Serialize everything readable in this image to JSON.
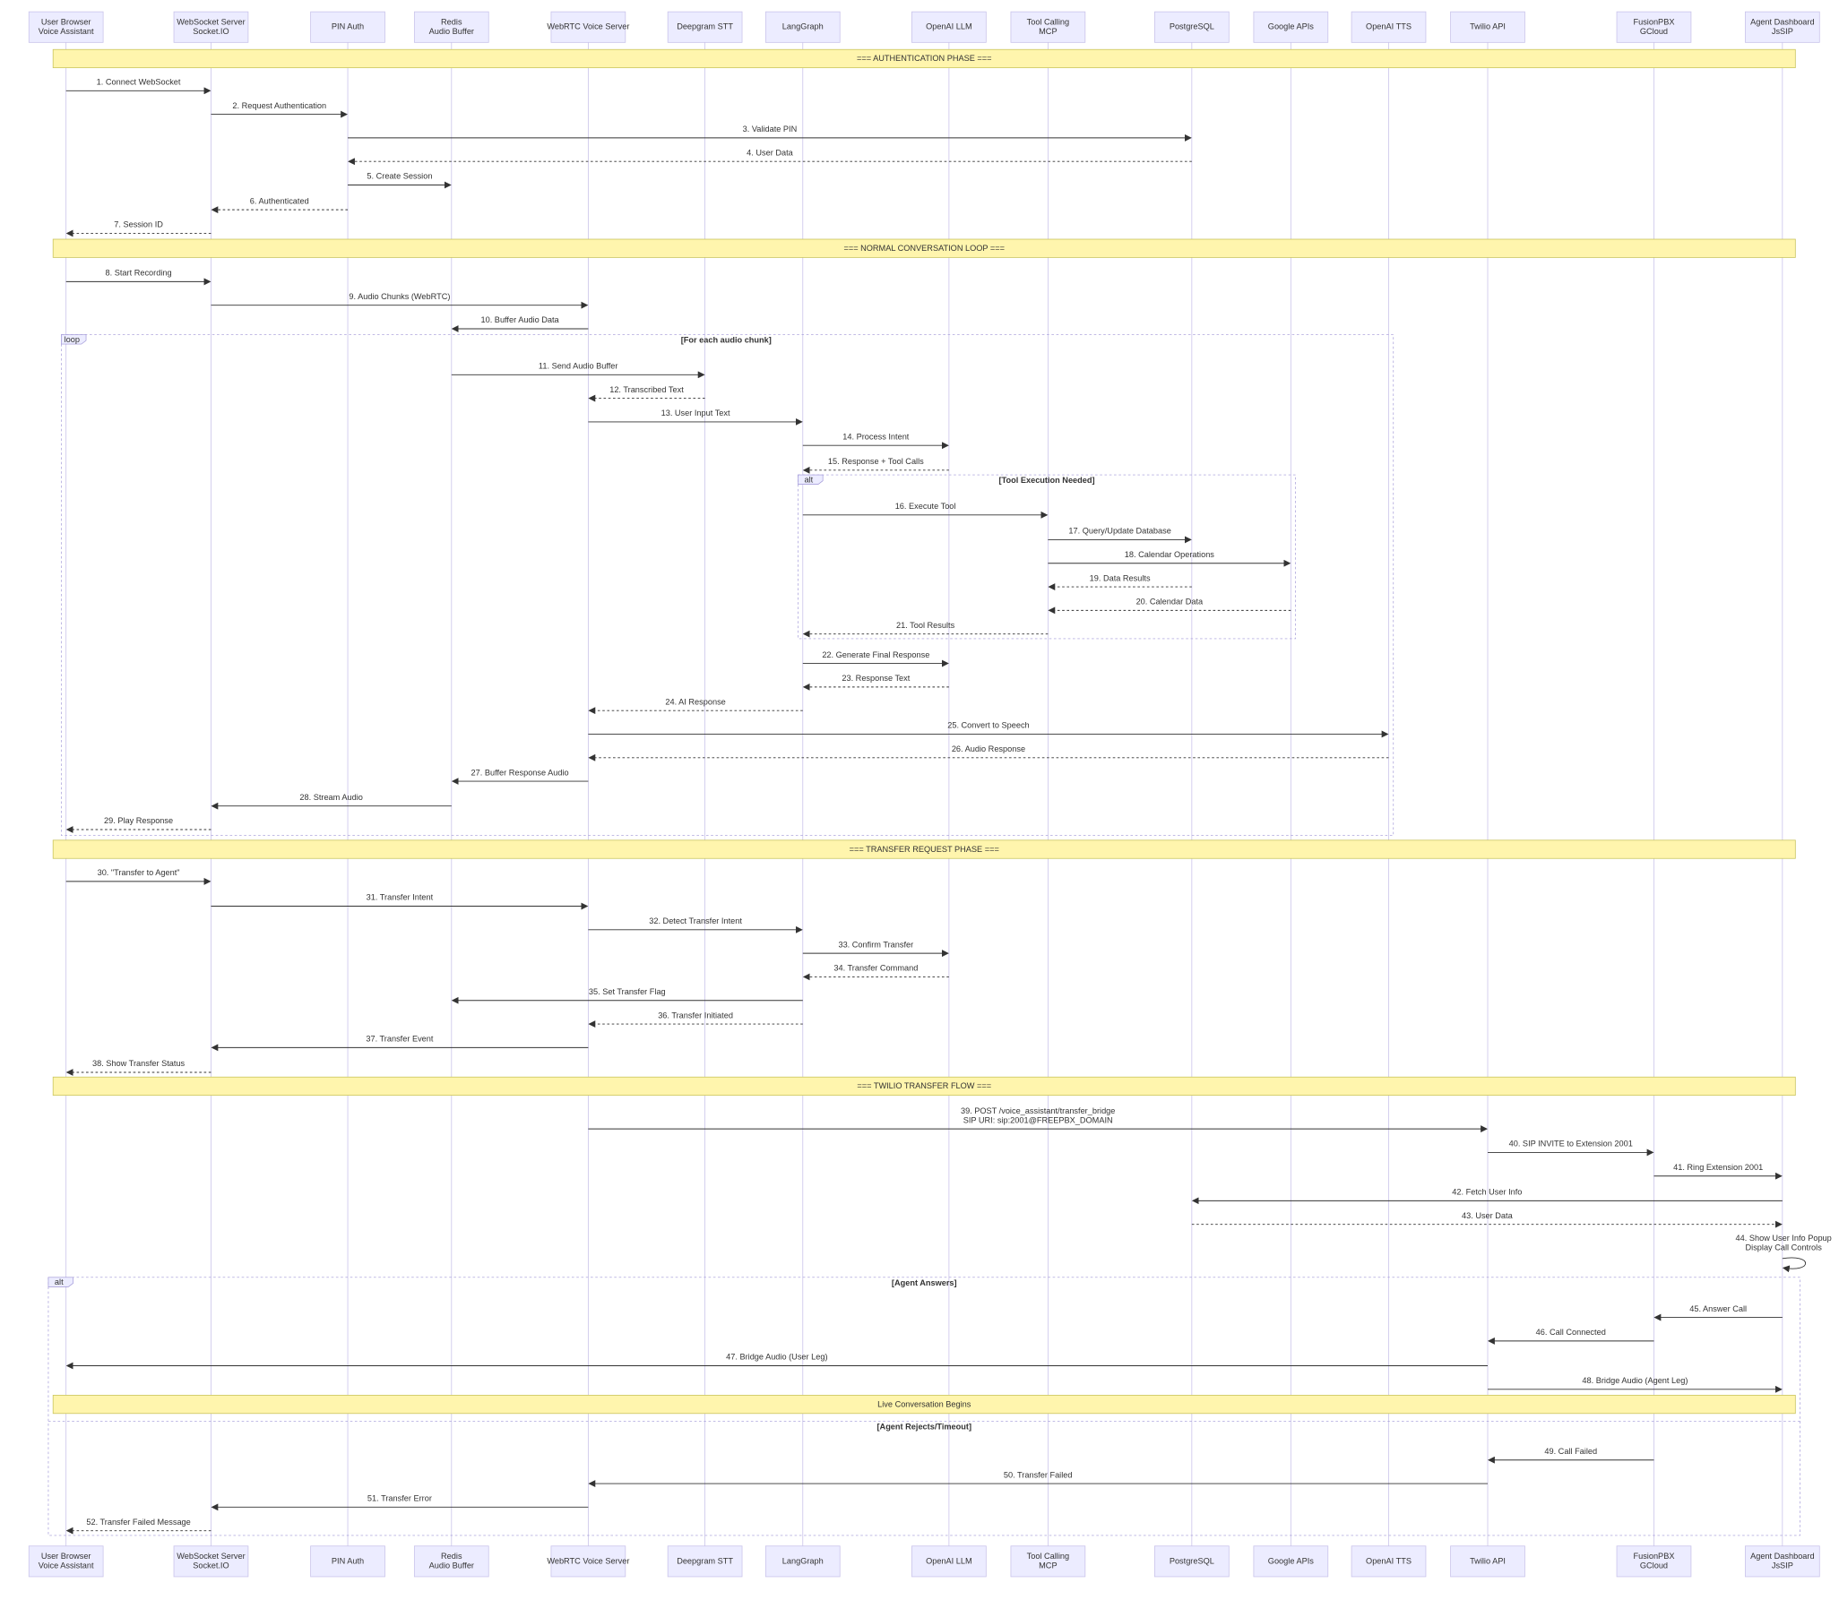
{
  "participants": [
    {
      "lines": [
        "User Browser",
        "Voice Assistant"
      ]
    },
    {
      "lines": [
        "WebSocket Server",
        "Socket.IO"
      ]
    },
    {
      "lines": [
        "PIN Auth"
      ]
    },
    {
      "lines": [
        "Redis",
        "Audio Buffer"
      ]
    },
    {
      "lines": [
        "WebRTC Voice Server"
      ]
    },
    {
      "lines": [
        "Deepgram STT"
      ]
    },
    {
      "lines": [
        "LangGraph"
      ]
    },
    {
      "lines": [
        "OpenAI LLM"
      ]
    },
    {
      "lines": [
        "Tool Calling",
        "MCP"
      ]
    },
    {
      "lines": [
        "PostgreSQL"
      ]
    },
    {
      "lines": [
        "Google APIs"
      ]
    },
    {
      "lines": [
        "OpenAI TTS"
      ]
    },
    {
      "lines": [
        "Twilio API"
      ]
    },
    {
      "lines": [
        "FusionPBX",
        "GCloud"
      ]
    },
    {
      "lines": [
        "Agent Dashboard",
        "JsSIP"
      ]
    }
  ],
  "notes": [
    {
      "text": "=== AUTHENTICATION PHASE ==="
    },
    {
      "text": "=== NORMAL CONVERSATION LOOP ==="
    },
    {
      "text": "=== TRANSFER REQUEST PHASE ==="
    },
    {
      "text": "=== TWILIO TRANSFER FLOW ==="
    },
    {
      "text": "Live Conversation Begins"
    }
  ],
  "blocks": [
    {
      "kind": "loop",
      "condition": "[For each audio chunk]"
    },
    {
      "kind": "alt",
      "condition": "[Tool Execution Needed]"
    },
    {
      "kind": "alt",
      "condition": "[Agent Answers]",
      "else_condition": "[Agent Rejects/Timeout]"
    }
  ],
  "messages": [
    {
      "lines": [
        "1. Connect WebSocket"
      ],
      "from": 0,
      "to": 1,
      "dashed": false
    },
    {
      "lines": [
        "2. Request Authentication"
      ],
      "from": 1,
      "to": 2,
      "dashed": false
    },
    {
      "lines": [
        "3. Validate PIN"
      ],
      "from": 2,
      "to": 9,
      "dashed": false
    },
    {
      "lines": [
        "4. User Data"
      ],
      "from": 9,
      "to": 2,
      "dashed": true
    },
    {
      "lines": [
        "5. Create Session"
      ],
      "from": 2,
      "to": 3,
      "dashed": false
    },
    {
      "lines": [
        "6. Authenticated"
      ],
      "from": 2,
      "to": 1,
      "dashed": true
    },
    {
      "lines": [
        "7. Session ID"
      ],
      "from": 1,
      "to": 0,
      "dashed": true
    },
    {
      "lines": [
        "8. Start Recording"
      ],
      "from": 0,
      "to": 1,
      "dashed": false
    },
    {
      "lines": [
        "9. Audio Chunks (WebRTC)"
      ],
      "from": 1,
      "to": 4,
      "dashed": false
    },
    {
      "lines": [
        "10. Buffer Audio Data"
      ],
      "from": 4,
      "to": 3,
      "dashed": false
    },
    {
      "lines": [
        "11. Send Audio Buffer"
      ],
      "from": 3,
      "to": 5,
      "dashed": false
    },
    {
      "lines": [
        "12. Transcribed Text"
      ],
      "from": 5,
      "to": 4,
      "dashed": true
    },
    {
      "lines": [
        "13. User Input Text"
      ],
      "from": 4,
      "to": 6,
      "dashed": false
    },
    {
      "lines": [
        "14. Process Intent"
      ],
      "from": 6,
      "to": 7,
      "dashed": false
    },
    {
      "lines": [
        "15. Response + Tool Calls"
      ],
      "from": 7,
      "to": 6,
      "dashed": true
    },
    {
      "lines": [
        "16. Execute Tool"
      ],
      "from": 6,
      "to": 8,
      "dashed": false
    },
    {
      "lines": [
        "17. Query/Update Database"
      ],
      "from": 8,
      "to": 9,
      "dashed": false
    },
    {
      "lines": [
        "18. Calendar Operations"
      ],
      "from": 8,
      "to": 10,
      "dashed": false
    },
    {
      "lines": [
        "19. Data Results"
      ],
      "from": 9,
      "to": 8,
      "dashed": true
    },
    {
      "lines": [
        "20. Calendar Data"
      ],
      "from": 10,
      "to": 8,
      "dashed": true
    },
    {
      "lines": [
        "21. Tool Results"
      ],
      "from": 8,
      "to": 6,
      "dashed": true
    },
    {
      "lines": [
        "22. Generate Final Response"
      ],
      "from": 6,
      "to": 7,
      "dashed": false
    },
    {
      "lines": [
        "23. Response Text"
      ],
      "from": 7,
      "to": 6,
      "dashed": true
    },
    {
      "lines": [
        "24. AI Response"
      ],
      "from": 6,
      "to": 4,
      "dashed": true
    },
    {
      "lines": [
        "25. Convert to Speech"
      ],
      "from": 4,
      "to": 11,
      "dashed": false
    },
    {
      "lines": [
        "26. Audio Response"
      ],
      "from": 11,
      "to": 4,
      "dashed": true
    },
    {
      "lines": [
        "27. Buffer Response Audio"
      ],
      "from": 4,
      "to": 3,
      "dashed": false
    },
    {
      "lines": [
        "28. Stream Audio"
      ],
      "from": 3,
      "to": 1,
      "dashed": false
    },
    {
      "lines": [
        "29. Play Response"
      ],
      "from": 1,
      "to": 0,
      "dashed": true
    },
    {
      "lines": [
        "30. \"Transfer to Agent\""
      ],
      "from": 0,
      "to": 1,
      "dashed": false
    },
    {
      "lines": [
        "31. Transfer Intent"
      ],
      "from": 1,
      "to": 4,
      "dashed": false
    },
    {
      "lines": [
        "32. Detect Transfer Intent"
      ],
      "from": 4,
      "to": 6,
      "dashed": false
    },
    {
      "lines": [
        "33. Confirm Transfer"
      ],
      "from": 6,
      "to": 7,
      "dashed": false
    },
    {
      "lines": [
        "34. Transfer Command"
      ],
      "from": 7,
      "to": 6,
      "dashed": true
    },
    {
      "lines": [
        "35. Set Transfer Flag"
      ],
      "from": 6,
      "to": 3,
      "dashed": false
    },
    {
      "lines": [
        "36. Transfer Initiated"
      ],
      "from": 6,
      "to": 4,
      "dashed": true
    },
    {
      "lines": [
        "37. Transfer Event"
      ],
      "from": 4,
      "to": 1,
      "dashed": false
    },
    {
      "lines": [
        "38. Show Transfer Status"
      ],
      "from": 1,
      "to": 0,
      "dashed": true
    },
    {
      "lines": [
        "39. POST /voice_assistant/transfer_bridge",
        "SIP URI: sip:2001@FREEPBX_DOMAIN"
      ],
      "from": 4,
      "to": 12,
      "dashed": false
    },
    {
      "lines": [
        "40. SIP INVITE to Extension 2001"
      ],
      "from": 12,
      "to": 13,
      "dashed": false
    },
    {
      "lines": [
        "41. Ring Extension 2001"
      ],
      "from": 13,
      "to": 14,
      "dashed": false
    },
    {
      "lines": [
        "42. Fetch User Info"
      ],
      "from": 14,
      "to": 9,
      "dashed": false
    },
    {
      "lines": [
        "43. User Data"
      ],
      "from": 9,
      "to": 14,
      "dashed": true
    },
    {
      "lines": [
        "44. Show User Info Popup",
        "Display Call Controls"
      ],
      "from": 14,
      "to": 14,
      "dashed": false
    },
    {
      "lines": [
        "45. Answer Call"
      ],
      "from": 14,
      "to": 13,
      "dashed": false
    },
    {
      "lines": [
        "46. Call Connected"
      ],
      "from": 13,
      "to": 12,
      "dashed": false
    },
    {
      "lines": [
        "47. Bridge Audio (User Leg)"
      ],
      "from": 12,
      "to": 0,
      "dashed": false
    },
    {
      "lines": [
        "48. Bridge Audio (Agent Leg)"
      ],
      "from": 12,
      "to": 14,
      "dashed": false
    },
    {
      "lines": [
        "49. Call Failed"
      ],
      "from": 13,
      "to": 12,
      "dashed": false
    },
    {
      "lines": [
        "50. Transfer Failed"
      ],
      "from": 12,
      "to": 4,
      "dashed": false
    },
    {
      "lines": [
        "51. Transfer Error"
      ],
      "from": 4,
      "to": 1,
      "dashed": false
    },
    {
      "lines": [
        "52. Transfer Failed Message"
      ],
      "from": 1,
      "to": 0,
      "dashed": true
    }
  ]
}
